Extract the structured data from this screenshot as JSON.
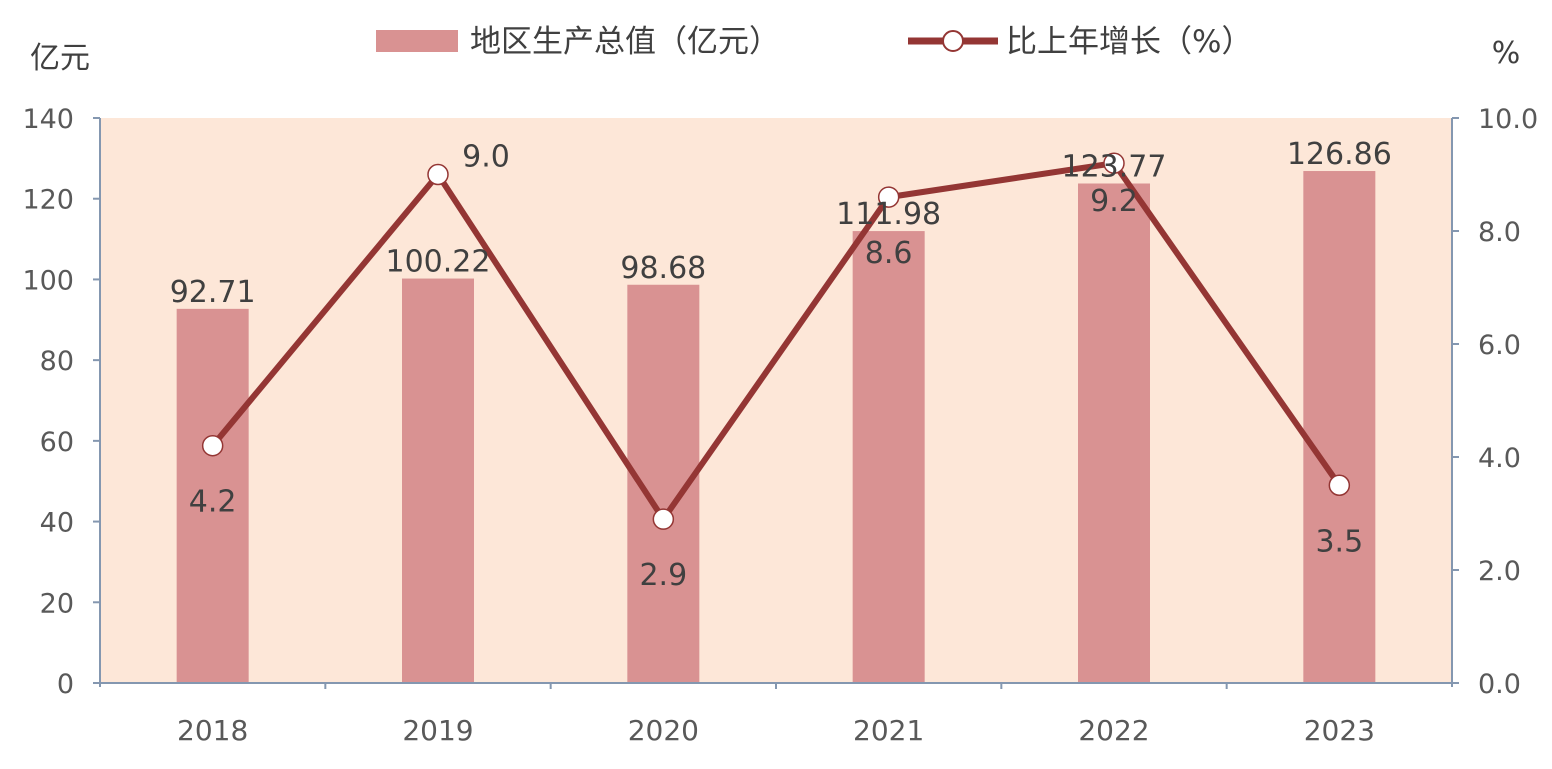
{
  "chart_data": {
    "type": "bar",
    "categories": [
      "2018",
      "2019",
      "2020",
      "2021",
      "2022",
      "2023"
    ],
    "series": [
      {
        "name": "地区生产总值（亿元）",
        "type": "bar",
        "axis": "left",
        "values": [
          92.71,
          100.22,
          98.68,
          111.98,
          123.77,
          126.86
        ],
        "labels": [
          "92.71",
          "100.22",
          "98.68",
          "111.98",
          "123.77",
          "126.86"
        ]
      },
      {
        "name": "比上年增长（%）",
        "type": "line",
        "axis": "right",
        "values": [
          4.2,
          9.0,
          2.9,
          8.6,
          9.2,
          3.5
        ],
        "labels": [
          "4.2",
          "9.0",
          "2.9",
          "8.6",
          "9.2",
          "3.5"
        ]
      }
    ],
    "y_left": {
      "unit": "亿元",
      "ylim": [
        0,
        140
      ],
      "ticks": [
        "0",
        "20",
        "40",
        "60",
        "80",
        "100",
        "120",
        "140"
      ]
    },
    "y_right": {
      "unit": "%",
      "ylim": [
        0,
        10
      ],
      "ticks": [
        "0.0",
        "2.0",
        "4.0",
        "6.0",
        "8.0",
        "10.0"
      ]
    },
    "grid": false,
    "legend": "top",
    "colors": {
      "plot_background": "#fde7d8",
      "bar": "#d99292",
      "line": "#943634",
      "marker_fill": "#ffffff",
      "axis": "#8497b0"
    }
  }
}
